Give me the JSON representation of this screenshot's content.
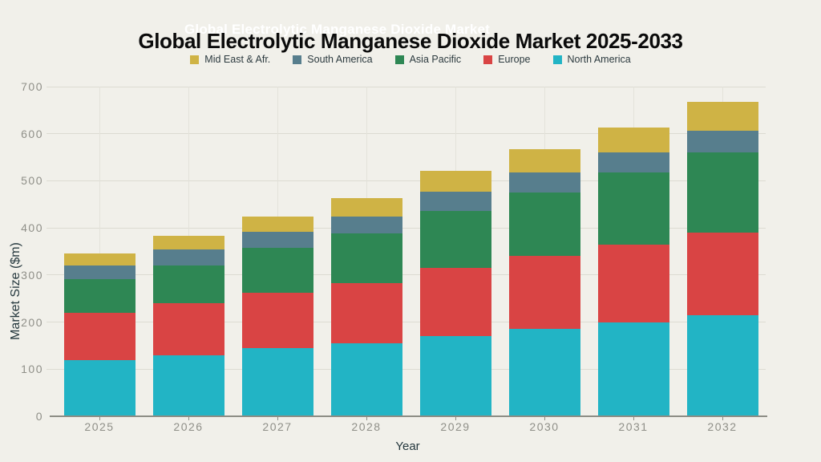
{
  "ghost_title": "Global Electrolytic Manganese Dioxide Market",
  "title": "Global Electrolytic Manganese Dioxide Market 2025-2033",
  "colors": {
    "background": "#f1f0ea",
    "title_text": "#0b0b0b",
    "ghost_title_text": "#ffffff",
    "axis_text": "#8f8f88",
    "axis_title_text": "#25383e"
  },
  "chart_data": {
    "type": "bar",
    "stacked": true,
    "title": "Global Electrolytic Manganese Dioxide Market",
    "xlabel": "Year",
    "ylabel": "Market Size ($m)",
    "ylim": [
      0,
      700
    ],
    "ytick_step": 100,
    "grid": true,
    "legend_position": "top",
    "categories": [
      "2025",
      "2026",
      "2027",
      "2028",
      "2029",
      "2030",
      "2031",
      "2032"
    ],
    "series": [
      {
        "name": "North America",
        "color": "#22b4c5",
        "values": [
          120,
          130,
          145,
          155,
          170,
          185,
          200,
          215
        ]
      },
      {
        "name": "Europe",
        "color": "#d94444",
        "values": [
          100,
          110,
          118,
          128,
          145,
          155,
          165,
          175
        ]
      },
      {
        "name": "Asia Pacific",
        "color": "#2e8754",
        "values": [
          72,
          81,
          94,
          106,
          121,
          136,
          152,
          171
        ]
      },
      {
        "name": "South America",
        "color": "#577e8d",
        "values": [
          28,
          33,
          34,
          36,
          41,
          41,
          43,
          46
        ]
      },
      {
        "name": "Mid East & Afr.",
        "color": "#cfb345",
        "values": [
          25,
          29,
          34,
          39,
          45,
          50,
          54,
          61
        ]
      }
    ]
  }
}
